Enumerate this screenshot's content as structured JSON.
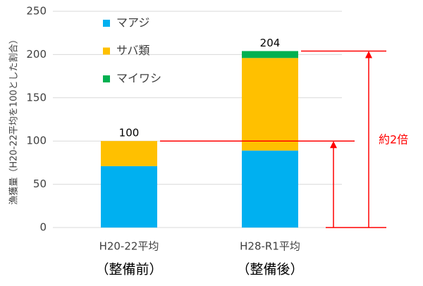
{
  "chart_data": {
    "type": "stacked-bar",
    "y_label": "漁獲量（H20-22平均を100とした割合）",
    "categories": [
      "H20-22平均",
      "H28-R1平均"
    ],
    "category_notes": [
      "（整備前）",
      "（整備後）"
    ],
    "series": [
      {
        "name": "マアジ",
        "color": "#00b0f0",
        "values": [
          71,
          89
        ]
      },
      {
        "name": "サバ類",
        "color": "#ffc000",
        "values": [
          29,
          107
        ]
      },
      {
        "name": "マイワシ",
        "color": "#00b050",
        "values": [
          0,
          8
        ]
      }
    ],
    "total_labels": [
      100,
      204
    ],
    "annotation": "約2倍",
    "annotation_color": "#ff0000",
    "ylim": [
      0,
      250
    ],
    "yticks": [
      0,
      50,
      100,
      150,
      200,
      250
    ],
    "grid": true
  }
}
